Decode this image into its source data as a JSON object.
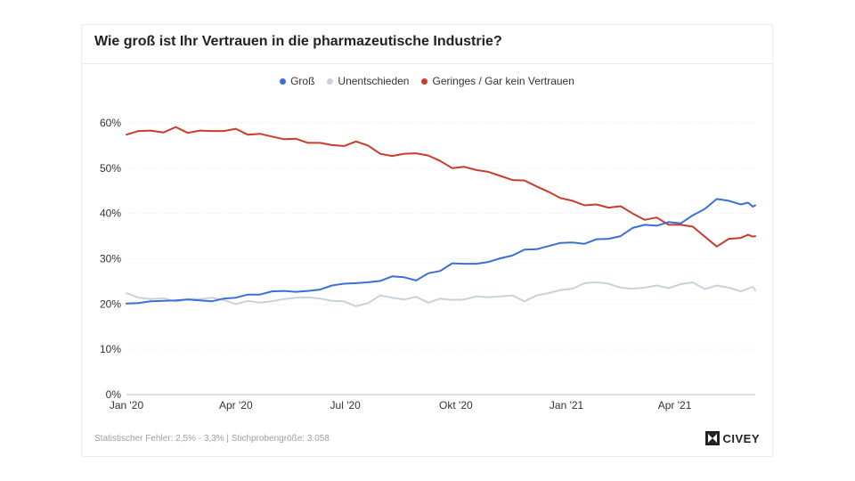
{
  "title": "Wie groß ist Ihr Vertrauen in die pharmazeutische Industrie?",
  "footnote": "Statistischer Fehler: 2,5% - 3,3% | Stichprobengröße: 3.058",
  "logo_text": "CIVEY",
  "colors": {
    "gross": "#3b6fd6",
    "unentschieden": "#c8d2dc",
    "geringes": "#cc3b2a",
    "grid": "#e6e6e6"
  },
  "chart_data": {
    "type": "line",
    "title": "Wie groß ist Ihr Vertrauen in die pharmazeutische Industrie?",
    "xlabel": "",
    "ylabel": "",
    "ylim": [
      0,
      60
    ],
    "yticks": [
      "0%",
      "10%",
      "20%",
      "30%",
      "40%",
      "50%",
      "60%"
    ],
    "xticks": [
      "Jan '20",
      "Apr '20",
      "Jul '20",
      "Okt '20",
      "Jan '21",
      "Apr '21"
    ],
    "grid": true,
    "legend_position": "top-center",
    "x_range": [
      "2020-01-01",
      "2021-06-07"
    ],
    "series": [
      {
        "name": "Groß",
        "color": "#3b6fd6",
        "values": [
          [
            "2020-01-01",
            20.1
          ],
          [
            "2020-01-11",
            20.2
          ],
          [
            "2020-01-21",
            20.6
          ],
          [
            "2020-02-01",
            20.7
          ],
          [
            "2020-02-11",
            20.8
          ],
          [
            "2020-02-21",
            21.0
          ],
          [
            "2020-03-02",
            20.8
          ],
          [
            "2020-03-12",
            20.6
          ],
          [
            "2020-03-22",
            21.2
          ],
          [
            "2020-04-01",
            21.4
          ],
          [
            "2020-04-11",
            22.1
          ],
          [
            "2020-04-21",
            22.1
          ],
          [
            "2020-05-01",
            22.8
          ],
          [
            "2020-05-11",
            22.9
          ],
          [
            "2020-05-21",
            22.7
          ],
          [
            "2020-05-31",
            22.9
          ],
          [
            "2020-06-10",
            23.2
          ],
          [
            "2020-06-20",
            24.1
          ],
          [
            "2020-06-30",
            24.5
          ],
          [
            "2020-07-10",
            24.6
          ],
          [
            "2020-07-20",
            24.8
          ],
          [
            "2020-07-30",
            25.1
          ],
          [
            "2020-08-09",
            26.1
          ],
          [
            "2020-08-19",
            25.9
          ],
          [
            "2020-08-29",
            25.2
          ],
          [
            "2020-09-08",
            26.8
          ],
          [
            "2020-09-18",
            27.3
          ],
          [
            "2020-09-28",
            29.0
          ],
          [
            "2020-10-08",
            28.9
          ],
          [
            "2020-10-18",
            28.9
          ],
          [
            "2020-10-28",
            29.3
          ],
          [
            "2020-11-07",
            30.1
          ],
          [
            "2020-11-17",
            30.7
          ],
          [
            "2020-11-27",
            32.0
          ],
          [
            "2020-12-07",
            32.1
          ],
          [
            "2020-12-17",
            32.8
          ],
          [
            "2020-12-27",
            33.5
          ],
          [
            "2021-01-06",
            33.6
          ],
          [
            "2021-01-16",
            33.3
          ],
          [
            "2021-01-26",
            34.3
          ],
          [
            "2021-02-05",
            34.4
          ],
          [
            "2021-02-15",
            35.0
          ],
          [
            "2021-02-25",
            36.8
          ],
          [
            "2021-03-07",
            37.5
          ],
          [
            "2021-03-17",
            37.3
          ],
          [
            "2021-03-27",
            38.1
          ],
          [
            "2021-04-06",
            37.8
          ],
          [
            "2021-04-16",
            39.6
          ],
          [
            "2021-04-26",
            41.0
          ],
          [
            "2021-05-06",
            43.2
          ],
          [
            "2021-05-16",
            42.8
          ],
          [
            "2021-05-26",
            42.0
          ],
          [
            "2021-06-01",
            42.4
          ],
          [
            "2021-06-05",
            41.5
          ],
          [
            "2021-06-07",
            41.8
          ]
        ]
      },
      {
        "name": "Unentschieden",
        "color": "#c8d2dc",
        "values": [
          [
            "2020-01-01",
            22.4
          ],
          [
            "2020-01-11",
            21.4
          ],
          [
            "2020-01-21",
            21.1
          ],
          [
            "2020-02-01",
            21.3
          ],
          [
            "2020-02-11",
            20.5
          ],
          [
            "2020-02-21",
            21.1
          ],
          [
            "2020-03-02",
            21.1
          ],
          [
            "2020-03-12",
            21.4
          ],
          [
            "2020-03-22",
            20.9
          ],
          [
            "2020-04-01",
            20.0
          ],
          [
            "2020-04-11",
            20.7
          ],
          [
            "2020-04-21",
            20.3
          ],
          [
            "2020-05-01",
            20.6
          ],
          [
            "2020-05-11",
            21.1
          ],
          [
            "2020-05-21",
            21.4
          ],
          [
            "2020-05-31",
            21.5
          ],
          [
            "2020-06-10",
            21.2
          ],
          [
            "2020-06-20",
            20.7
          ],
          [
            "2020-06-30",
            20.6
          ],
          [
            "2020-07-10",
            19.5
          ],
          [
            "2020-07-20",
            20.2
          ],
          [
            "2020-07-30",
            21.9
          ],
          [
            "2020-08-09",
            21.4
          ],
          [
            "2020-08-19",
            21.0
          ],
          [
            "2020-08-29",
            21.6
          ],
          [
            "2020-09-08",
            20.3
          ],
          [
            "2020-09-18",
            21.2
          ],
          [
            "2020-09-28",
            20.9
          ],
          [
            "2020-10-08",
            21.0
          ],
          [
            "2020-10-18",
            21.7
          ],
          [
            "2020-10-28",
            21.5
          ],
          [
            "2020-11-07",
            21.7
          ],
          [
            "2020-11-17",
            21.9
          ],
          [
            "2020-11-27",
            20.6
          ],
          [
            "2020-12-07",
            21.9
          ],
          [
            "2020-12-17",
            22.4
          ],
          [
            "2020-12-27",
            23.1
          ],
          [
            "2021-01-06",
            23.4
          ],
          [
            "2021-01-16",
            24.6
          ],
          [
            "2021-01-26",
            24.8
          ],
          [
            "2021-02-05",
            24.5
          ],
          [
            "2021-02-15",
            23.6
          ],
          [
            "2021-02-25",
            23.4
          ],
          [
            "2021-03-07",
            23.6
          ],
          [
            "2021-03-17",
            24.1
          ],
          [
            "2021-03-27",
            23.5
          ],
          [
            "2021-04-06",
            24.4
          ],
          [
            "2021-04-16",
            24.8
          ],
          [
            "2021-04-26",
            23.3
          ],
          [
            "2021-05-06",
            24.1
          ],
          [
            "2021-05-16",
            23.6
          ],
          [
            "2021-05-26",
            22.8
          ],
          [
            "2021-06-01",
            23.4
          ],
          [
            "2021-06-05",
            23.8
          ],
          [
            "2021-06-07",
            23.0
          ]
        ]
      },
      {
        "name": "Geringes / Gar kein Vertrauen",
        "color": "#cc3b2a",
        "values": [
          [
            "2020-01-01",
            57.4
          ],
          [
            "2020-01-11",
            58.2
          ],
          [
            "2020-01-21",
            58.3
          ],
          [
            "2020-02-01",
            57.9
          ],
          [
            "2020-02-11",
            59.1
          ],
          [
            "2020-02-21",
            57.8
          ],
          [
            "2020-03-02",
            58.3
          ],
          [
            "2020-03-12",
            58.2
          ],
          [
            "2020-03-22",
            58.2
          ],
          [
            "2020-04-01",
            58.7
          ],
          [
            "2020-04-11",
            57.4
          ],
          [
            "2020-04-21",
            57.6
          ],
          [
            "2020-05-01",
            57.0
          ],
          [
            "2020-05-11",
            56.4
          ],
          [
            "2020-05-21",
            56.5
          ],
          [
            "2020-05-31",
            55.6
          ],
          [
            "2020-06-10",
            55.6
          ],
          [
            "2020-06-20",
            55.1
          ],
          [
            "2020-06-30",
            54.9
          ],
          [
            "2020-07-10",
            55.9
          ],
          [
            "2020-07-20",
            55.0
          ],
          [
            "2020-07-30",
            53.2
          ],
          [
            "2020-08-09",
            52.7
          ],
          [
            "2020-08-19",
            53.2
          ],
          [
            "2020-08-29",
            53.3
          ],
          [
            "2020-09-08",
            52.8
          ],
          [
            "2020-09-18",
            51.6
          ],
          [
            "2020-09-28",
            50.0
          ],
          [
            "2020-10-08",
            50.3
          ],
          [
            "2020-10-18",
            49.6
          ],
          [
            "2020-10-28",
            49.2
          ],
          [
            "2020-11-07",
            48.3
          ],
          [
            "2020-11-17",
            47.4
          ],
          [
            "2020-11-27",
            47.3
          ],
          [
            "2020-12-07",
            46.0
          ],
          [
            "2020-12-17",
            44.8
          ],
          [
            "2020-12-27",
            43.4
          ],
          [
            "2021-01-06",
            42.8
          ],
          [
            "2021-01-16",
            41.8
          ],
          [
            "2021-01-26",
            42.0
          ],
          [
            "2021-02-05",
            41.3
          ],
          [
            "2021-02-15",
            41.6
          ],
          [
            "2021-02-25",
            40.0
          ],
          [
            "2021-03-07",
            38.6
          ],
          [
            "2021-03-17",
            39.1
          ],
          [
            "2021-03-27",
            37.5
          ],
          [
            "2021-04-06",
            37.5
          ],
          [
            "2021-04-16",
            37.1
          ],
          [
            "2021-04-26",
            34.9
          ],
          [
            "2021-05-06",
            32.7
          ],
          [
            "2021-05-16",
            34.4
          ],
          [
            "2021-05-26",
            34.6
          ],
          [
            "2021-06-01",
            35.3
          ],
          [
            "2021-06-05",
            34.9
          ],
          [
            "2021-06-07",
            35.0
          ]
        ]
      }
    ]
  }
}
